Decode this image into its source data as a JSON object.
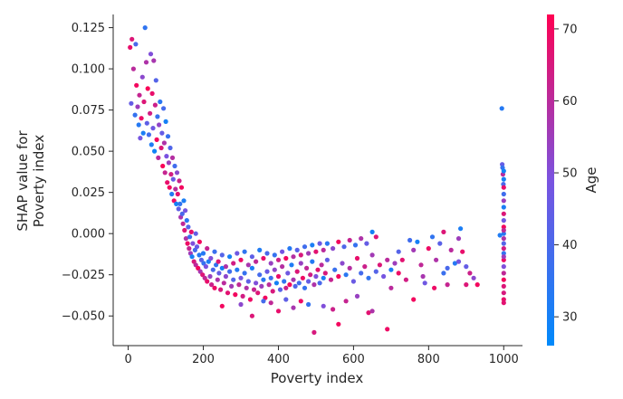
{
  "chart_data": {
    "type": "scatter",
    "xlabel": "Poverty index",
    "ylabel_lines": [
      "SHAP value for",
      "Poverty index"
    ],
    "xlim": [
      -40,
      1050
    ],
    "ylim": [
      -0.068,
      0.133
    ],
    "x_ticks": [
      0,
      200,
      400,
      600,
      800,
      1000
    ],
    "y_ticks": [
      -0.05,
      -0.025,
      0.0,
      0.025,
      0.05,
      0.075,
      0.1,
      0.125
    ],
    "x_tick_labels": [
      "0",
      "200",
      "400",
      "600",
      "800",
      "1000"
    ],
    "y_tick_labels": [
      "−0.050",
      "−0.025",
      "0.000",
      "0.025",
      "0.050",
      "0.075",
      "0.100",
      "0.125"
    ],
    "grid": false,
    "colorbar": {
      "label": "Age",
      "range": [
        26,
        72
      ],
      "ticks": [
        30,
        40,
        50,
        60,
        70
      ],
      "tick_labels": [
        "30",
        "40",
        "50",
        "60",
        "70"
      ],
      "colors": [
        "#008afb",
        "#ff0052"
      ]
    },
    "points": [
      [
        5,
        0.113,
        68
      ],
      [
        8,
        0.079,
        45
      ],
      [
        10,
        0.118,
        66
      ],
      [
        14,
        0.1,
        60
      ],
      [
        18,
        0.072,
        36
      ],
      [
        20,
        0.115,
        40
      ],
      [
        22,
        0.09,
        70
      ],
      [
        25,
        0.077,
        55
      ],
      [
        28,
        0.066,
        33
      ],
      [
        30,
        0.084,
        62
      ],
      [
        32,
        0.058,
        48
      ],
      [
        35,
        0.07,
        69
      ],
      [
        38,
        0.095,
        52
      ],
      [
        40,
        0.061,
        31
      ],
      [
        42,
        0.08,
        66
      ],
      [
        45,
        0.125,
        35
      ],
      [
        48,
        0.104,
        58
      ],
      [
        50,
        0.067,
        44
      ],
      [
        52,
        0.088,
        71
      ],
      [
        55,
        0.06,
        38
      ],
      [
        58,
        0.073,
        64
      ],
      [
        60,
        0.109,
        50
      ],
      [
        62,
        0.054,
        32
      ],
      [
        64,
        0.085,
        68
      ],
      [
        66,
        0.064,
        47
      ],
      [
        68,
        0.105,
        57
      ],
      [
        70,
        0.05,
        29
      ],
      [
        72,
        0.078,
        63
      ],
      [
        74,
        0.093,
        42
      ],
      [
        76,
        0.057,
        70
      ],
      [
        78,
        0.071,
        36
      ],
      [
        80,
        0.046,
        60
      ],
      [
        82,
        0.066,
        53
      ],
      [
        85,
        0.08,
        34
      ],
      [
        88,
        0.052,
        66
      ],
      [
        90,
        0.061,
        45
      ],
      [
        92,
        0.041,
        71
      ],
      [
        94,
        0.076,
        39
      ],
      [
        96,
        0.055,
        58
      ],
      [
        98,
        0.037,
        62
      ],
      [
        100,
        0.068,
        30
      ],
      [
        102,
        0.047,
        49
      ],
      [
        104,
        0.031,
        68
      ],
      [
        106,
        0.059,
        36
      ],
      [
        108,
        0.043,
        55
      ],
      [
        110,
        0.028,
        70
      ],
      [
        112,
        0.052,
        41
      ],
      [
        114,
        0.036,
        64
      ],
      [
        116,
        0.024,
        33
      ],
      [
        118,
        0.046,
        59
      ],
      [
        120,
        0.033,
        46
      ],
      [
        122,
        0.02,
        69
      ],
      [
        124,
        0.041,
        38
      ],
      [
        126,
        0.027,
        60
      ],
      [
        128,
        0.018,
        30
      ],
      [
        130,
        0.037,
        52
      ],
      [
        132,
        0.024,
        67
      ],
      [
        134,
        0.015,
        44
      ],
      [
        136,
        0.032,
        63
      ],
      [
        138,
        0.018,
        35
      ],
      [
        140,
        0.01,
        57
      ],
      [
        142,
        0.028,
        70
      ],
      [
        144,
        0.012,
        40
      ],
      [
        146,
        0.006,
        61
      ],
      [
        148,
        0.02,
        31
      ],
      [
        150,
        0.002,
        66
      ],
      [
        152,
        0.014,
        48
      ],
      [
        154,
        -0.003,
        58
      ],
      [
        156,
        0.008,
        34
      ],
      [
        158,
        -0.006,
        69
      ],
      [
        160,
        0.004,
        42
      ],
      [
        162,
        -0.009,
        62
      ],
      [
        164,
        -0.002,
        37
      ],
      [
        166,
        -0.012,
        55
      ],
      [
        168,
        0.001,
        68
      ],
      [
        170,
        -0.014,
        30
      ],
      [
        172,
        -0.006,
        50
      ],
      [
        175,
        -0.017,
        65
      ],
      [
        178,
        -0.01,
        39
      ],
      [
        180,
        -0.019,
        60
      ],
      [
        183,
        -0.008,
        46
      ],
      [
        186,
        -0.021,
        70
      ],
      [
        189,
        -0.013,
        33
      ],
      [
        192,
        -0.023,
        57
      ],
      [
        195,
        -0.016,
        43
      ],
      [
        198,
        -0.025,
        66
      ],
      [
        201,
        -0.018,
        36
      ],
      [
        204,
        -0.027,
        61
      ],
      [
        207,
        -0.02,
        49
      ],
      [
        210,
        -0.029,
        68
      ],
      [
        214,
        -0.017,
        31
      ],
      [
        218,
        -0.026,
        54
      ],
      [
        222,
        -0.031,
        63
      ],
      [
        226,
        -0.022,
        40
      ],
      [
        230,
        -0.033,
        69
      ],
      [
        234,
        -0.019,
        35
      ],
      [
        238,
        -0.028,
        58
      ],
      [
        242,
        -0.024,
        45
      ],
      [
        246,
        -0.034,
        65
      ],
      [
        250,
        -0.021,
        30
      ],
      [
        255,
        -0.03,
        60
      ],
      [
        260,
        -0.026,
        52
      ],
      [
        265,
        -0.036,
        67
      ],
      [
        270,
        -0.023,
        38
      ],
      [
        275,
        -0.032,
        56
      ],
      [
        280,
        -0.028,
        42
      ],
      [
        285,
        -0.037,
        70
      ],
      [
        290,
        -0.022,
        33
      ],
      [
        295,
        -0.031,
        61
      ],
      [
        300,
        -0.027,
        48
      ],
      [
        305,
        -0.038,
        64
      ],
      [
        310,
        -0.024,
        36
      ],
      [
        315,
        -0.033,
        58
      ],
      [
        320,
        -0.029,
        44
      ],
      [
        325,
        -0.04,
        69
      ],
      [
        330,
        -0.021,
        31
      ],
      [
        335,
        -0.034,
        62
      ],
      [
        340,
        -0.03,
        50
      ],
      [
        345,
        -0.036,
        66
      ],
      [
        350,
        -0.025,
        39
      ],
      [
        355,
        -0.032,
        55
      ],
      [
        360,
        -0.028,
        34
      ],
      [
        365,
        -0.039,
        70
      ],
      [
        370,
        -0.023,
        46
      ],
      [
        375,
        -0.031,
        60
      ],
      [
        380,
        -0.027,
        37
      ],
      [
        385,
        -0.035,
        65
      ],
      [
        390,
        -0.022,
        53
      ],
      [
        395,
        -0.03,
        30
      ],
      [
        400,
        -0.026,
        68
      ],
      [
        405,
        -0.034,
        43
      ],
      [
        410,
        -0.02,
        59
      ],
      [
        415,
        -0.029,
        35
      ],
      [
        420,
        -0.033,
        63
      ],
      [
        425,
        -0.024,
        47
      ],
      [
        430,
        -0.031,
        70
      ],
      [
        435,
        -0.019,
        32
      ],
      [
        440,
        -0.028,
        57
      ],
      [
        445,
        -0.032,
        41
      ],
      [
        450,
        -0.023,
        66
      ],
      [
        455,
        -0.03,
        38
      ],
      [
        460,
        -0.018,
        54
      ],
      [
        465,
        -0.027,
        69
      ],
      [
        470,
        -0.033,
        36
      ],
      [
        475,
        -0.021,
        61
      ],
      [
        480,
        -0.029,
        45
      ],
      [
        485,
        -0.025,
        64
      ],
      [
        490,
        -0.017,
        33
      ],
      [
        495,
        -0.031,
        58
      ],
      [
        500,
        -0.026,
        50
      ],
      [
        505,
        -0.022,
        67
      ],
      [
        510,
        -0.03,
        40
      ],
      [
        515,
        -0.019,
        60
      ],
      [
        520,
        -0.027,
        31
      ],
      [
        525,
        -0.024,
        65
      ],
      [
        530,
        -0.016,
        44
      ],
      [
        540,
        -0.028,
        62
      ],
      [
        550,
        -0.022,
        37
      ],
      [
        560,
        -0.026,
        70
      ],
      [
        570,
        -0.018,
        52
      ],
      [
        580,
        -0.025,
        34
      ],
      [
        590,
        -0.021,
        59
      ],
      [
        600,
        -0.029,
        46
      ],
      [
        610,
        -0.015,
        68
      ],
      [
        620,
        -0.024,
        39
      ],
      [
        630,
        -0.02,
        63
      ],
      [
        640,
        -0.027,
        35
      ],
      [
        650,
        -0.013,
        56
      ],
      [
        660,
        -0.023,
        42
      ],
      [
        670,
        -0.019,
        66
      ],
      [
        680,
        -0.026,
        48
      ],
      [
        690,
        -0.016,
        60
      ],
      [
        700,
        -0.022,
        31
      ],
      [
        710,
        -0.018,
        55
      ],
      [
        720,
        -0.024,
        69
      ],
      [
        180,
        0.0,
        45
      ],
      [
        190,
        -0.005,
        70
      ],
      [
        200,
        -0.012,
        33
      ],
      [
        210,
        -0.009,
        62
      ],
      [
        220,
        -0.015,
        50
      ],
      [
        230,
        -0.011,
        37
      ],
      [
        240,
        -0.017,
        66
      ],
      [
        250,
        -0.013,
        42
      ],
      [
        260,
        -0.02,
        58
      ],
      [
        270,
        -0.014,
        30
      ],
      [
        280,
        -0.018,
        64
      ],
      [
        290,
        -0.012,
        47
      ],
      [
        300,
        -0.016,
        69
      ],
      [
        310,
        -0.011,
        35
      ],
      [
        320,
        -0.019,
        57
      ],
      [
        330,
        -0.014,
        44
      ],
      [
        340,
        -0.017,
        61
      ],
      [
        350,
        -0.01,
        32
      ],
      [
        360,
        -0.015,
        68
      ],
      [
        370,
        -0.012,
        40
      ],
      [
        380,
        -0.018,
        54
      ],
      [
        390,
        -0.013,
        36
      ],
      [
        400,
        -0.016,
        63
      ],
      [
        410,
        -0.011,
        48
      ],
      [
        420,
        -0.015,
        70
      ],
      [
        430,
        -0.009,
        33
      ],
      [
        440,
        -0.014,
        59
      ],
      [
        450,
        -0.01,
        43
      ],
      [
        460,
        -0.013,
        65
      ],
      [
        470,
        -0.008,
        38
      ],
      [
        480,
        -0.012,
        56
      ],
      [
        490,
        -0.007,
        31
      ],
      [
        500,
        -0.011,
        67
      ],
      [
        510,
        -0.006,
        46
      ],
      [
        520,
        -0.01,
        60
      ],
      [
        530,
        -0.006,
        34
      ],
      [
        545,
        -0.009,
        52
      ],
      [
        560,
        -0.005,
        70
      ],
      [
        575,
        -0.008,
        41
      ],
      [
        590,
        -0.004,
        62
      ],
      [
        605,
        -0.007,
        36
      ],
      [
        620,
        -0.003,
        58
      ],
      [
        635,
        -0.006,
        45
      ],
      [
        650,
        0.001,
        30
      ],
      [
        660,
        -0.002,
        66
      ],
      [
        250,
        -0.044,
        70
      ],
      [
        300,
        -0.043,
        52
      ],
      [
        330,
        -0.05,
        66
      ],
      [
        360,
        -0.041,
        39
      ],
      [
        380,
        -0.042,
        61
      ],
      [
        400,
        -0.047,
        68
      ],
      [
        420,
        -0.04,
        44
      ],
      [
        440,
        -0.045,
        57
      ],
      [
        460,
        -0.041,
        69
      ],
      [
        480,
        -0.043,
        36
      ],
      [
        495,
        -0.06,
        65
      ],
      [
        520,
        -0.044,
        50
      ],
      [
        545,
        -0.046,
        63
      ],
      [
        560,
        -0.055,
        70
      ],
      [
        640,
        -0.048,
        67
      ],
      [
        650,
        -0.047,
        58
      ],
      [
        690,
        -0.058,
        69
      ],
      [
        610,
        -0.038,
        54
      ],
      [
        580,
        -0.041,
        62
      ],
      [
        760,
        -0.04,
        70
      ],
      [
        740,
        -0.028,
        64
      ],
      [
        750,
        -0.004,
        38
      ],
      [
        760,
        -0.01,
        56
      ],
      [
        770,
        -0.005,
        30
      ],
      [
        780,
        -0.019,
        61
      ],
      [
        790,
        -0.03,
        47
      ],
      [
        800,
        -0.009,
        69
      ],
      [
        810,
        -0.002,
        35
      ],
      [
        820,
        -0.016,
        58
      ],
      [
        830,
        -0.006,
        43
      ],
      [
        840,
        0.001,
        66
      ],
      [
        850,
        -0.021,
        40
      ],
      [
        860,
        -0.01,
        60
      ],
      [
        870,
        -0.018,
        33
      ],
      [
        880,
        -0.003,
        55
      ],
      [
        890,
        -0.011,
        68
      ],
      [
        900,
        -0.02,
        45
      ],
      [
        910,
        -0.024,
        63
      ],
      [
        920,
        -0.027,
        52
      ],
      [
        930,
        -0.031,
        70
      ],
      [
        840,
        -0.024,
        37
      ],
      [
        850,
        -0.031,
        62
      ],
      [
        880,
        -0.017,
        48
      ],
      [
        885,
        0.003,
        31
      ],
      [
        900,
        -0.031,
        66
      ],
      [
        785,
        -0.026,
        57
      ],
      [
        815,
        -0.033,
        69
      ],
      [
        720,
        -0.011,
        42
      ],
      [
        730,
        -0.016,
        67
      ],
      [
        700,
        -0.033,
        60
      ],
      [
        990,
        -0.001,
        32
      ],
      [
        995,
        0.076,
        33
      ],
      [
        996,
        0.042,
        45
      ],
      [
        997,
        0.04,
        36
      ],
      [
        998,
        0.036,
        60
      ],
      [
        999,
        0.03,
        40
      ],
      [
        1000,
        0.028,
        68
      ],
      [
        1000,
        0.024,
        38
      ],
      [
        1000,
        0.02,
        55
      ],
      [
        1000,
        0.016,
        31
      ],
      [
        1000,
        0.012,
        66
      ],
      [
        1000,
        0.008,
        47
      ],
      [
        1000,
        0.004,
        70
      ],
      [
        1000,
        0.0,
        34
      ],
      [
        1000,
        -0.003,
        58
      ],
      [
        1000,
        -0.006,
        42
      ],
      [
        1000,
        -0.009,
        64
      ],
      [
        1000,
        -0.012,
        36
      ],
      [
        1000,
        -0.016,
        69
      ],
      [
        1000,
        -0.02,
        50
      ],
      [
        1000,
        -0.024,
        61
      ],
      [
        1000,
        -0.028,
        70
      ],
      [
        1000,
        -0.032,
        66
      ],
      [
        1000,
        -0.036,
        65
      ],
      [
        1000,
        -0.04,
        68
      ],
      [
        1000,
        -0.042,
        67
      ],
      [
        1000,
        0.033,
        30
      ],
      [
        1000,
        0.038,
        29
      ],
      [
        1000,
        0.002,
        60
      ],
      [
        1000,
        -0.014,
        55
      ]
    ]
  }
}
